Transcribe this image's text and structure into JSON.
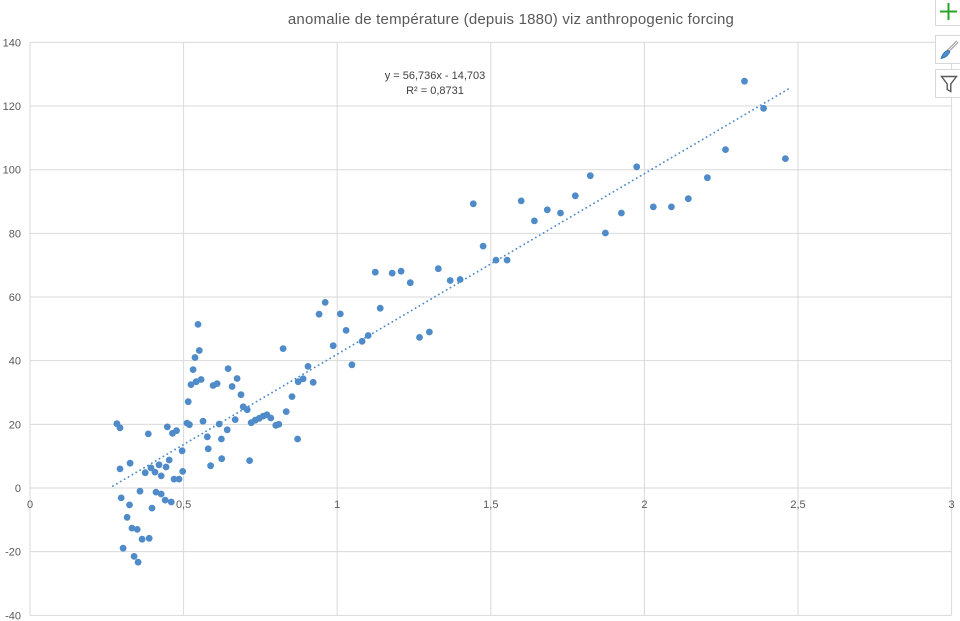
{
  "chart_data": {
    "type": "scatter",
    "title": "anomalie de température (depuis 1880) viz anthropogenic forcing",
    "xlabel": "",
    "ylabel": "",
    "xlim": [
      0,
      3
    ],
    "ylim": [
      -40,
      140
    ],
    "grid": true,
    "legend": "none",
    "colors": {
      "marker": "#4F8BC9",
      "trendline": "#4F8BC9",
      "gridline": "#D9D9D9",
      "tick_label": "#595959",
      "title": "#595959",
      "equation_text": "#404040",
      "background": "#FFFFFF"
    },
    "x_ticks": [
      {
        "value": 0,
        "label": "0"
      },
      {
        "value": 0.5,
        "label": "0,5"
      },
      {
        "value": 1,
        "label": "1"
      },
      {
        "value": 1.5,
        "label": "1,5"
      },
      {
        "value": 2,
        "label": "2"
      },
      {
        "value": 2.5,
        "label": "2,5"
      },
      {
        "value": 3,
        "label": "3"
      }
    ],
    "y_ticks": [
      {
        "value": -40,
        "label": "-40"
      },
      {
        "value": -20,
        "label": "-20"
      },
      {
        "value": 0,
        "label": "0"
      },
      {
        "value": 20,
        "label": "20"
      },
      {
        "value": 40,
        "label": "40"
      },
      {
        "value": 60,
        "label": "60"
      },
      {
        "value": 80,
        "label": "80"
      },
      {
        "value": 100,
        "label": "100"
      },
      {
        "value": 120,
        "label": "120"
      },
      {
        "value": 140,
        "label": "140"
      }
    ],
    "trendline": {
      "equation": "y = 56,736x - 14,703",
      "r_squared": "R² = 0,8731",
      "slope": 56.736,
      "intercept": -14.703,
      "x_start": 0.27,
      "x_end": 2.47,
      "style": "dotted"
    },
    "points": [
      [
        0.283,
        20.2
      ],
      [
        0.293,
        18.9
      ],
      [
        0.293,
        6.0
      ],
      [
        0.297,
        -3.1
      ],
      [
        0.303,
        -18.9
      ],
      [
        0.316,
        -9.2
      ],
      [
        0.324,
        -5.3
      ],
      [
        0.326,
        7.8
      ],
      [
        0.332,
        -12.6
      ],
      [
        0.339,
        -21.5
      ],
      [
        0.349,
        -13.0
      ],
      [
        0.352,
        -23.3
      ],
      [
        0.358,
        -1.0
      ],
      [
        0.365,
        -16.1
      ],
      [
        0.375,
        4.8
      ],
      [
        0.385,
        17.0
      ],
      [
        0.388,
        -15.8
      ],
      [
        0.394,
        6.3
      ],
      [
        0.397,
        -6.3
      ],
      [
        0.407,
        5.0
      ],
      [
        0.41,
        -1.3
      ],
      [
        0.42,
        7.3
      ],
      [
        0.427,
        -1.9
      ],
      [
        0.427,
        3.8
      ],
      [
        0.44,
        -3.8
      ],
      [
        0.443,
        6.6
      ],
      [
        0.447,
        19.2
      ],
      [
        0.453,
        8.8
      ],
      [
        0.46,
        -4.4
      ],
      [
        0.464,
        17.2
      ],
      [
        0.469,
        2.8
      ],
      [
        0.477,
        18.0
      ],
      [
        0.485,
        2.8
      ],
      [
        0.495,
        11.7
      ],
      [
        0.497,
        5.2
      ],
      [
        0.511,
        20.4
      ],
      [
        0.515,
        27.1
      ],
      [
        0.519,
        19.9
      ],
      [
        0.524,
        32.5
      ],
      [
        0.531,
        37.2
      ],
      [
        0.537,
        41.0
      ],
      [
        0.541,
        33.4
      ],
      [
        0.547,
        51.4
      ],
      [
        0.551,
        43.2
      ],
      [
        0.557,
        34.1
      ],
      [
        0.563,
        21.0
      ],
      [
        0.577,
        16.1
      ],
      [
        0.58,
        12.3
      ],
      [
        0.588,
        7.0
      ],
      [
        0.596,
        32.2
      ],
      [
        0.609,
        32.8
      ],
      [
        0.616,
        20.1
      ],
      [
        0.623,
        15.4
      ],
      [
        0.624,
        9.2
      ],
      [
        0.642,
        18.3
      ],
      [
        0.645,
        37.5
      ],
      [
        0.658,
        31.9
      ],
      [
        0.668,
        21.5
      ],
      [
        0.674,
        34.4
      ],
      [
        0.687,
        29.3
      ],
      [
        0.694,
        25.5
      ],
      [
        0.707,
        24.6
      ],
      [
        0.715,
        8.6
      ],
      [
        0.72,
        20.5
      ],
      [
        0.733,
        21.3
      ],
      [
        0.746,
        21.9
      ],
      [
        0.759,
        22.6
      ],
      [
        0.771,
        23.0
      ],
      [
        0.784,
        22.0
      ],
      [
        0.8,
        19.7
      ],
      [
        0.81,
        20.0
      ],
      [
        0.824,
        43.8
      ],
      [
        0.834,
        24.0
      ],
      [
        0.853,
        28.7
      ],
      [
        0.871,
        15.4
      ],
      [
        0.873,
        33.4
      ],
      [
        0.889,
        34.3
      ],
      [
        0.905,
        38.2
      ],
      [
        0.922,
        33.2
      ],
      [
        0.941,
        54.6
      ],
      [
        0.961,
        58.3
      ],
      [
        0.987,
        44.7
      ],
      [
        1.01,
        54.7
      ],
      [
        1.029,
        49.5
      ],
      [
        1.048,
        38.7
      ],
      [
        1.081,
        46.1
      ],
      [
        1.101,
        47.9
      ],
      [
        1.124,
        67.8
      ],
      [
        1.14,
        56.5
      ],
      [
        1.179,
        67.5
      ],
      [
        1.208,
        68.1
      ],
      [
        1.238,
        64.5
      ],
      [
        1.268,
        47.3
      ],
      [
        1.3,
        49.0
      ],
      [
        1.329,
        68.9
      ],
      [
        1.368,
        65.2
      ],
      [
        1.4,
        65.5
      ],
      [
        1.443,
        89.3
      ],
      [
        1.475,
        76.0
      ],
      [
        1.517,
        71.6
      ],
      [
        1.553,
        71.6
      ],
      [
        1.599,
        90.2
      ],
      [
        1.642,
        83.9
      ],
      [
        1.684,
        87.4
      ],
      [
        1.727,
        86.4
      ],
      [
        1.775,
        91.8
      ],
      [
        1.824,
        98.1
      ],
      [
        1.873,
        80.1
      ],
      [
        1.925,
        86.4
      ],
      [
        1.975,
        100.9
      ],
      [
        2.029,
        88.3
      ],
      [
        2.088,
        88.3
      ],
      [
        2.143,
        90.9
      ],
      [
        2.205,
        97.5
      ],
      [
        2.264,
        106.3
      ],
      [
        2.326,
        127.8
      ],
      [
        2.388,
        119.3
      ],
      [
        2.459,
        103.5
      ]
    ]
  },
  "toolbar": {
    "buttons": [
      {
        "name": "chart-elements-button",
        "icon": "plus-icon",
        "icon_color": "#28A428"
      },
      {
        "name": "chart-styles-button",
        "icon": "brush-icon",
        "icon_color": "#4A90D2"
      },
      {
        "name": "chart-filters-button",
        "icon": "funnel-icon",
        "icon_color": "#595959"
      }
    ]
  }
}
